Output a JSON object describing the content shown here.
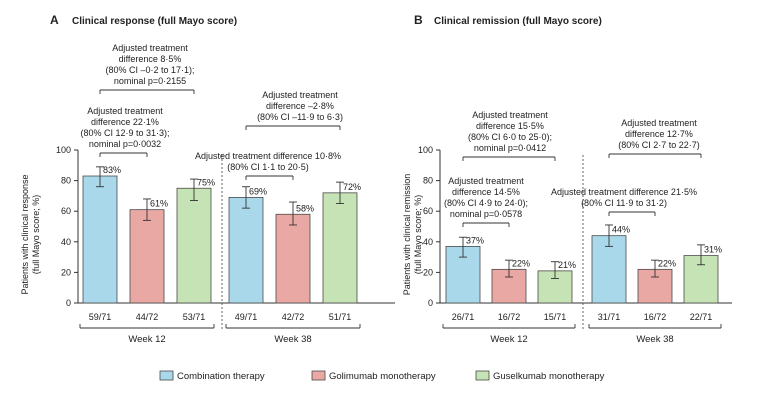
{
  "legend": [
    {
      "label": "Combination therapy",
      "color": "#a9d8ea"
    },
    {
      "label": "Golimumab monotherapy",
      "color": "#e9a8a3"
    },
    {
      "label": "Guselkumab monotherapy",
      "color": "#c5e3b4"
    }
  ],
  "colors": {
    "bar_stroke": "#4a4a4a",
    "axis": "#333333",
    "text": "#222222"
  },
  "chart_data": [
    {
      "type": "bar",
      "panel_letter": "A",
      "title": "Clinical response (full Mayo score)",
      "ylabel": "Patients with clinical response (full Mayo score; %)",
      "ylim": [
        0,
        100
      ],
      "yticks": [
        0,
        20,
        40,
        60,
        80,
        100
      ],
      "groups": [
        {
          "label": "Week 12",
          "bars": [
            {
              "series": "Combination therapy",
              "value": 83,
              "label": "83%",
              "err_low": 76,
              "err_high": 89,
              "n": "59/71"
            },
            {
              "series": "Golimumab monotherapy",
              "value": 61,
              "label": "61%",
              "err_low": 54,
              "err_high": 68,
              "n": "44/72"
            },
            {
              "series": "Guselkumab monotherapy",
              "value": 75,
              "label": "75%",
              "err_low": 67,
              "err_high": 81,
              "n": "53/71"
            }
          ],
          "annotations": [
            {
              "lines": [
                "Adjusted treatment",
                "difference 8·5%",
                "(80% CI –0·2 to 17·1);",
                "nominal p=0·2155"
              ],
              "from": 0,
              "to": 2
            },
            {
              "lines": [
                "Adjusted treatment",
                "difference 22·1%",
                "(80% CI 12·9 to 31·3);",
                "nominal p=0·0032"
              ],
              "from": 0,
              "to": 1
            }
          ]
        },
        {
          "label": "Week 38",
          "bars": [
            {
              "series": "Combination therapy",
              "value": 69,
              "label": "69%",
              "err_low": 62,
              "err_high": 76,
              "n": "49/71"
            },
            {
              "series": "Golimumab monotherapy",
              "value": 58,
              "label": "58%",
              "err_low": 51,
              "err_high": 66,
              "n": "42/72"
            },
            {
              "series": "Guselkumab monotherapy",
              "value": 72,
              "label": "72%",
              "err_low": 65,
              "err_high": 79,
              "n": "51/71"
            }
          ],
          "annotations": [
            {
              "lines": [
                "Adjusted treatment",
                "difference –2·8%",
                "(80% CI –11·9 to 6·3)"
              ],
              "from": 0,
              "to": 2
            },
            {
              "lines": [
                "Adjusted treatment difference 10·8%",
                "(80% CI 1·1 to 20·5)"
              ],
              "from": 0,
              "to": 1
            }
          ]
        }
      ]
    },
    {
      "type": "bar",
      "panel_letter": "B",
      "title": "Clinical remission (full Mayo score)",
      "ylabel": "Patients with clinical remission (full Mayo score; %)",
      "ylim": [
        0,
        100
      ],
      "yticks": [
        0,
        20,
        40,
        60,
        80,
        100
      ],
      "groups": [
        {
          "label": "Week 12",
          "bars": [
            {
              "series": "Combination therapy",
              "value": 37,
              "label": "37%",
              "err_low": 30,
              "err_high": 43,
              "n": "26/71"
            },
            {
              "series": "Golimumab monotherapy",
              "value": 22,
              "label": "22%",
              "err_low": 17,
              "err_high": 28,
              "n": "16/72"
            },
            {
              "series": "Guselkumab monotherapy",
              "value": 21,
              "label": "21%",
              "err_low": 16,
              "err_high": 27,
              "n": "15/71"
            }
          ],
          "annotations": [
            {
              "lines": [
                "Adjusted treatment",
                "difference 15·5%",
                "(80% CI 6·0 to 25·0);",
                "nominal p=0·0412"
              ],
              "from": 0,
              "to": 2
            },
            {
              "lines": [
                "Adjusted treatment",
                "difference 14·5%",
                "(80% CI 4·9 to 24·0);",
                "nominal p=0·0578"
              ],
              "from": 0,
              "to": 1
            }
          ]
        },
        {
          "label": "Week 38",
          "bars": [
            {
              "series": "Combination therapy",
              "value": 44,
              "label": "44%",
              "err_low": 37,
              "err_high": 51,
              "n": "31/71"
            },
            {
              "series": "Golimumab monotherapy",
              "value": 22,
              "label": "22%",
              "err_low": 17,
              "err_high": 28,
              "n": "16/72"
            },
            {
              "series": "Guselkumab monotherapy",
              "value": 31,
              "label": "31%",
              "err_low": 25,
              "err_high": 38,
              "n": "22/71"
            }
          ],
          "annotations": [
            {
              "lines": [
                "Adjusted treatment",
                "difference 12·7%",
                "(80% CI 2·7 to 22·7)"
              ],
              "from": 0,
              "to": 2
            },
            {
              "lines": [
                "Adjusted treatment difference 21·5%",
                "(80% CI 11·9 to 31·2)"
              ],
              "from": 0,
              "to": 1
            }
          ]
        }
      ]
    }
  ]
}
